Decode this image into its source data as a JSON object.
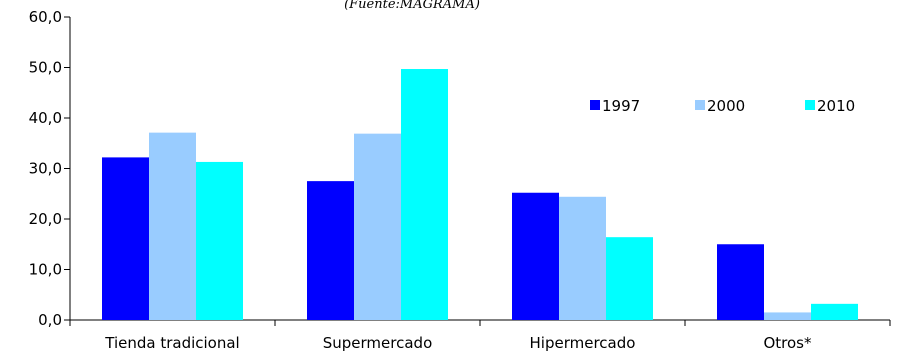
{
  "chart_data": {
    "type": "bar",
    "subtitle": "(Fuente:MAGRAMA)",
    "categories": [
      "Tienda tradicional",
      "Supermercado",
      "Hipermercado",
      "Otros*"
    ],
    "series": [
      {
        "name": "1997",
        "color": "#0000ff",
        "values": [
          32.2,
          27.5,
          25.2,
          15.0
        ]
      },
      {
        "name": "2000",
        "color": "#99ccff",
        "values": [
          37.1,
          36.9,
          24.4,
          1.5
        ]
      },
      {
        "name": "2010",
        "color": "#00ffff",
        "values": [
          31.3,
          49.7,
          16.4,
          3.2
        ]
      }
    ],
    "yticks": [
      "0,0",
      "10,0",
      "20,0",
      "30,0",
      "40,0",
      "50,0",
      "60,0"
    ],
    "ylim": [
      0,
      60
    ],
    "grid": false,
    "legend_position": "right"
  }
}
